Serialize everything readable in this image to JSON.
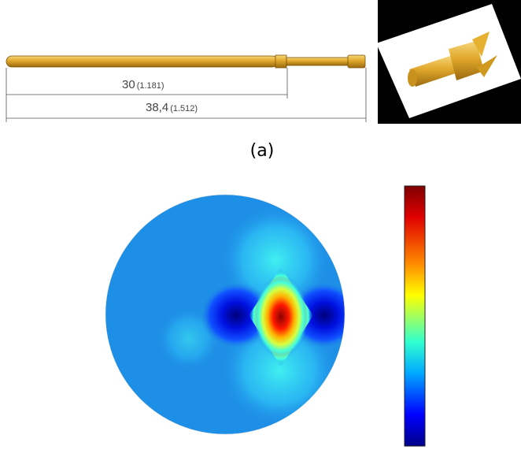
{
  "figure": {
    "dimensions": [
      {
        "value": "30",
        "imperial": "(1.181)"
      },
      {
        "value": "38,4",
        "imperial": "(1.512)"
      }
    ],
    "caption": "(a)"
  }
}
